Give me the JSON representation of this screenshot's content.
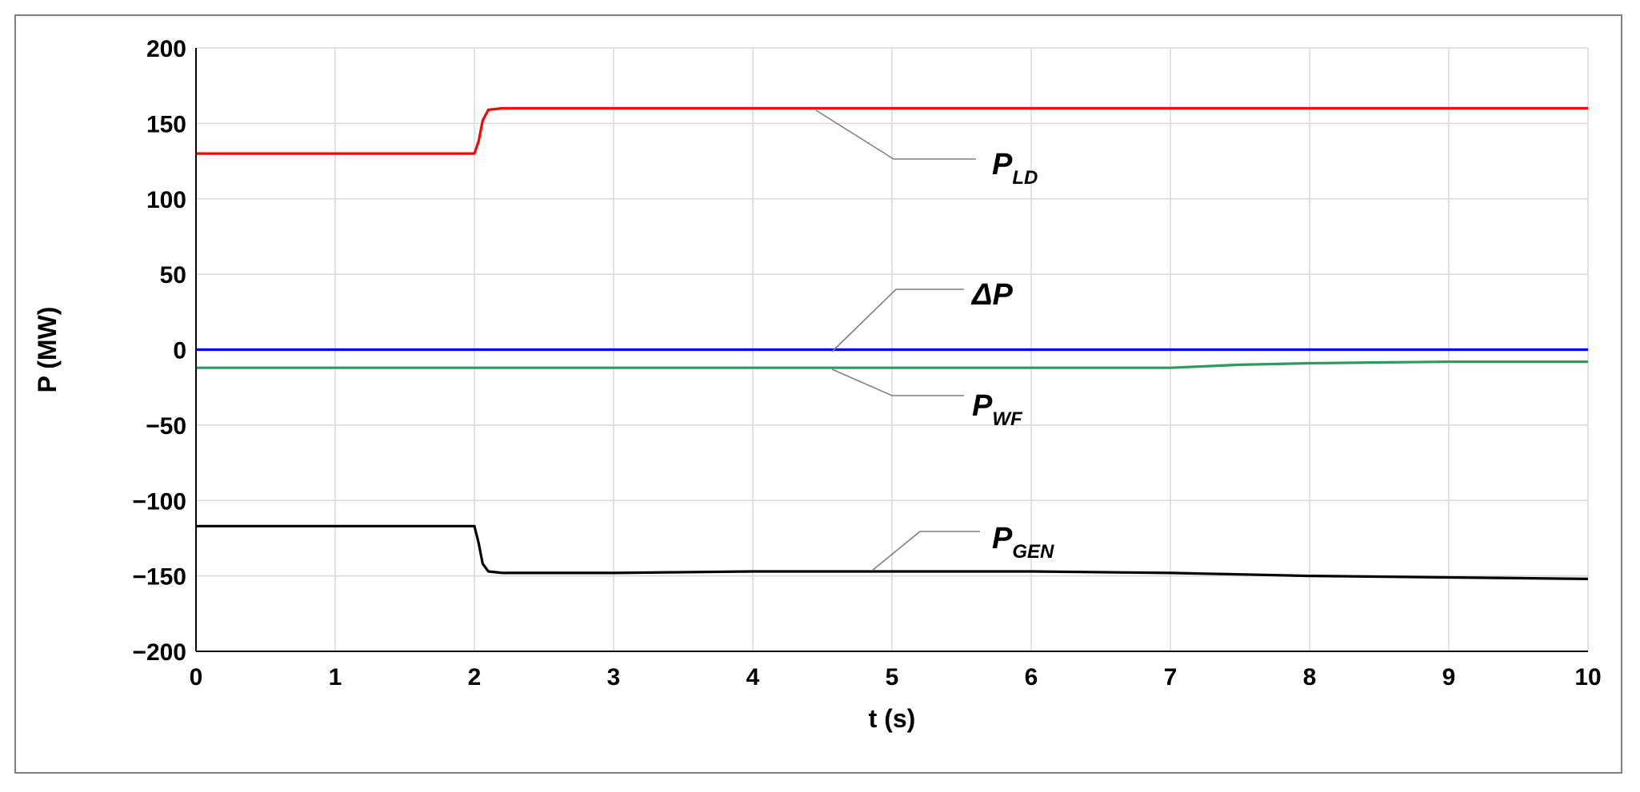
{
  "chart_data": {
    "type": "line",
    "title": "",
    "xlabel": "t (s)",
    "ylabel": "P (MW)",
    "xlim": [
      0,
      10
    ],
    "ylim": [
      -200,
      200
    ],
    "xticks": [
      0,
      1,
      2,
      3,
      4,
      5,
      6,
      7,
      8,
      9,
      10
    ],
    "yticks": [
      -200,
      -150,
      -100,
      -50,
      0,
      50,
      100,
      150,
      200
    ],
    "ytick_labels": [
      "−200",
      "−150",
      "−100",
      "−50",
      "0",
      "50",
      "100",
      "150",
      "200"
    ],
    "grid": true,
    "legend": "none",
    "series": [
      {
        "id": "pld",
        "label_main": "P",
        "label_sub": "LD",
        "color": "#ff0000",
        "x": [
          0,
          2.0,
          2.03,
          2.06,
          2.1,
          2.2,
          3,
          4,
          5,
          6,
          7,
          8,
          9,
          10
        ],
        "y": [
          130,
          130,
          138,
          152,
          159,
          160,
          160,
          160,
          160,
          160,
          160,
          160,
          160,
          160
        ]
      },
      {
        "id": "dp",
        "label_main": "ΔP",
        "label_sub": "",
        "color": "#0000ff",
        "x": [
          0,
          1,
          2,
          3,
          4,
          5,
          6,
          7,
          8,
          9,
          10
        ],
        "y": [
          0,
          0,
          0,
          0,
          0,
          0,
          0,
          0,
          0,
          0,
          0
        ]
      },
      {
        "id": "pwf",
        "label_main": "P",
        "label_sub": "WF",
        "color": "#2e9b5e",
        "x": [
          0,
          1,
          2,
          3,
          4,
          5,
          6,
          7,
          7.5,
          8,
          8.5,
          9,
          9.5,
          10
        ],
        "y": [
          -12,
          -12,
          -12,
          -12,
          -12,
          -12,
          -12,
          -12,
          -10,
          -9,
          -8.5,
          -8,
          -8,
          -8
        ]
      },
      {
        "id": "pgen",
        "label_main": "P",
        "label_sub": "GEN",
        "color": "#000000",
        "x": [
          0,
          2.0,
          2.03,
          2.06,
          2.1,
          2.2,
          3,
          4,
          5,
          6,
          7,
          7.5,
          8,
          9,
          10
        ],
        "y": [
          -117,
          -117,
          -128,
          -142,
          -147,
          -148,
          -148,
          -147,
          -147,
          -147,
          -148,
          -149,
          -150,
          -151,
          -152
        ]
      }
    ]
  }
}
